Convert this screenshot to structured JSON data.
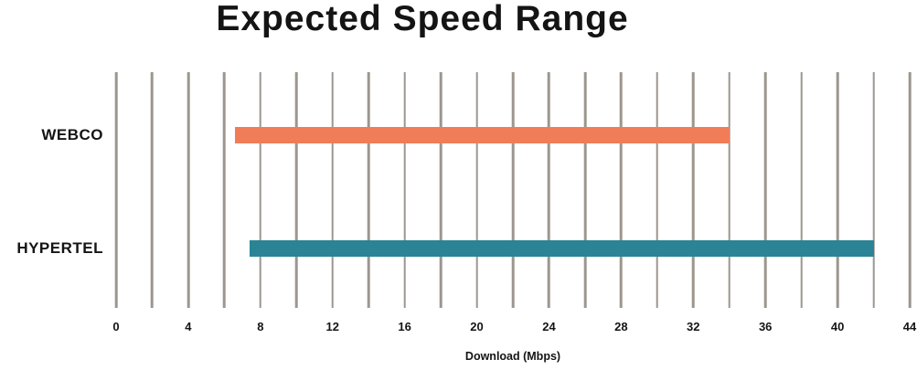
{
  "colors": {
    "gridline": "#9c968f",
    "text": "#141414",
    "webco_bar": "#f07d57",
    "hypertel_bar": "#2a8496"
  },
  "chart_data": {
    "type": "bar",
    "orientation": "horizontal-range",
    "title": "Expected Speed Range",
    "xlabel": "Download (Mbps)",
    "categories": [
      "WEBCO",
      "HYPERTEL"
    ],
    "series": [
      {
        "name": "WEBCO",
        "range": [
          6.6,
          34
        ],
        "color": "#f07d57"
      },
      {
        "name": "HYPERTEL",
        "range": [
          7.4,
          42
        ],
        "color": "#2a8496"
      }
    ],
    "xlim": [
      0,
      44
    ],
    "x_ticks": [
      0,
      4,
      8,
      12,
      16,
      20,
      24,
      28,
      32,
      36,
      40,
      44
    ],
    "gridline_step": 2,
    "grid": true,
    "legend": false,
    "row_center_fractions": [
      0.267,
      0.748
    ]
  }
}
